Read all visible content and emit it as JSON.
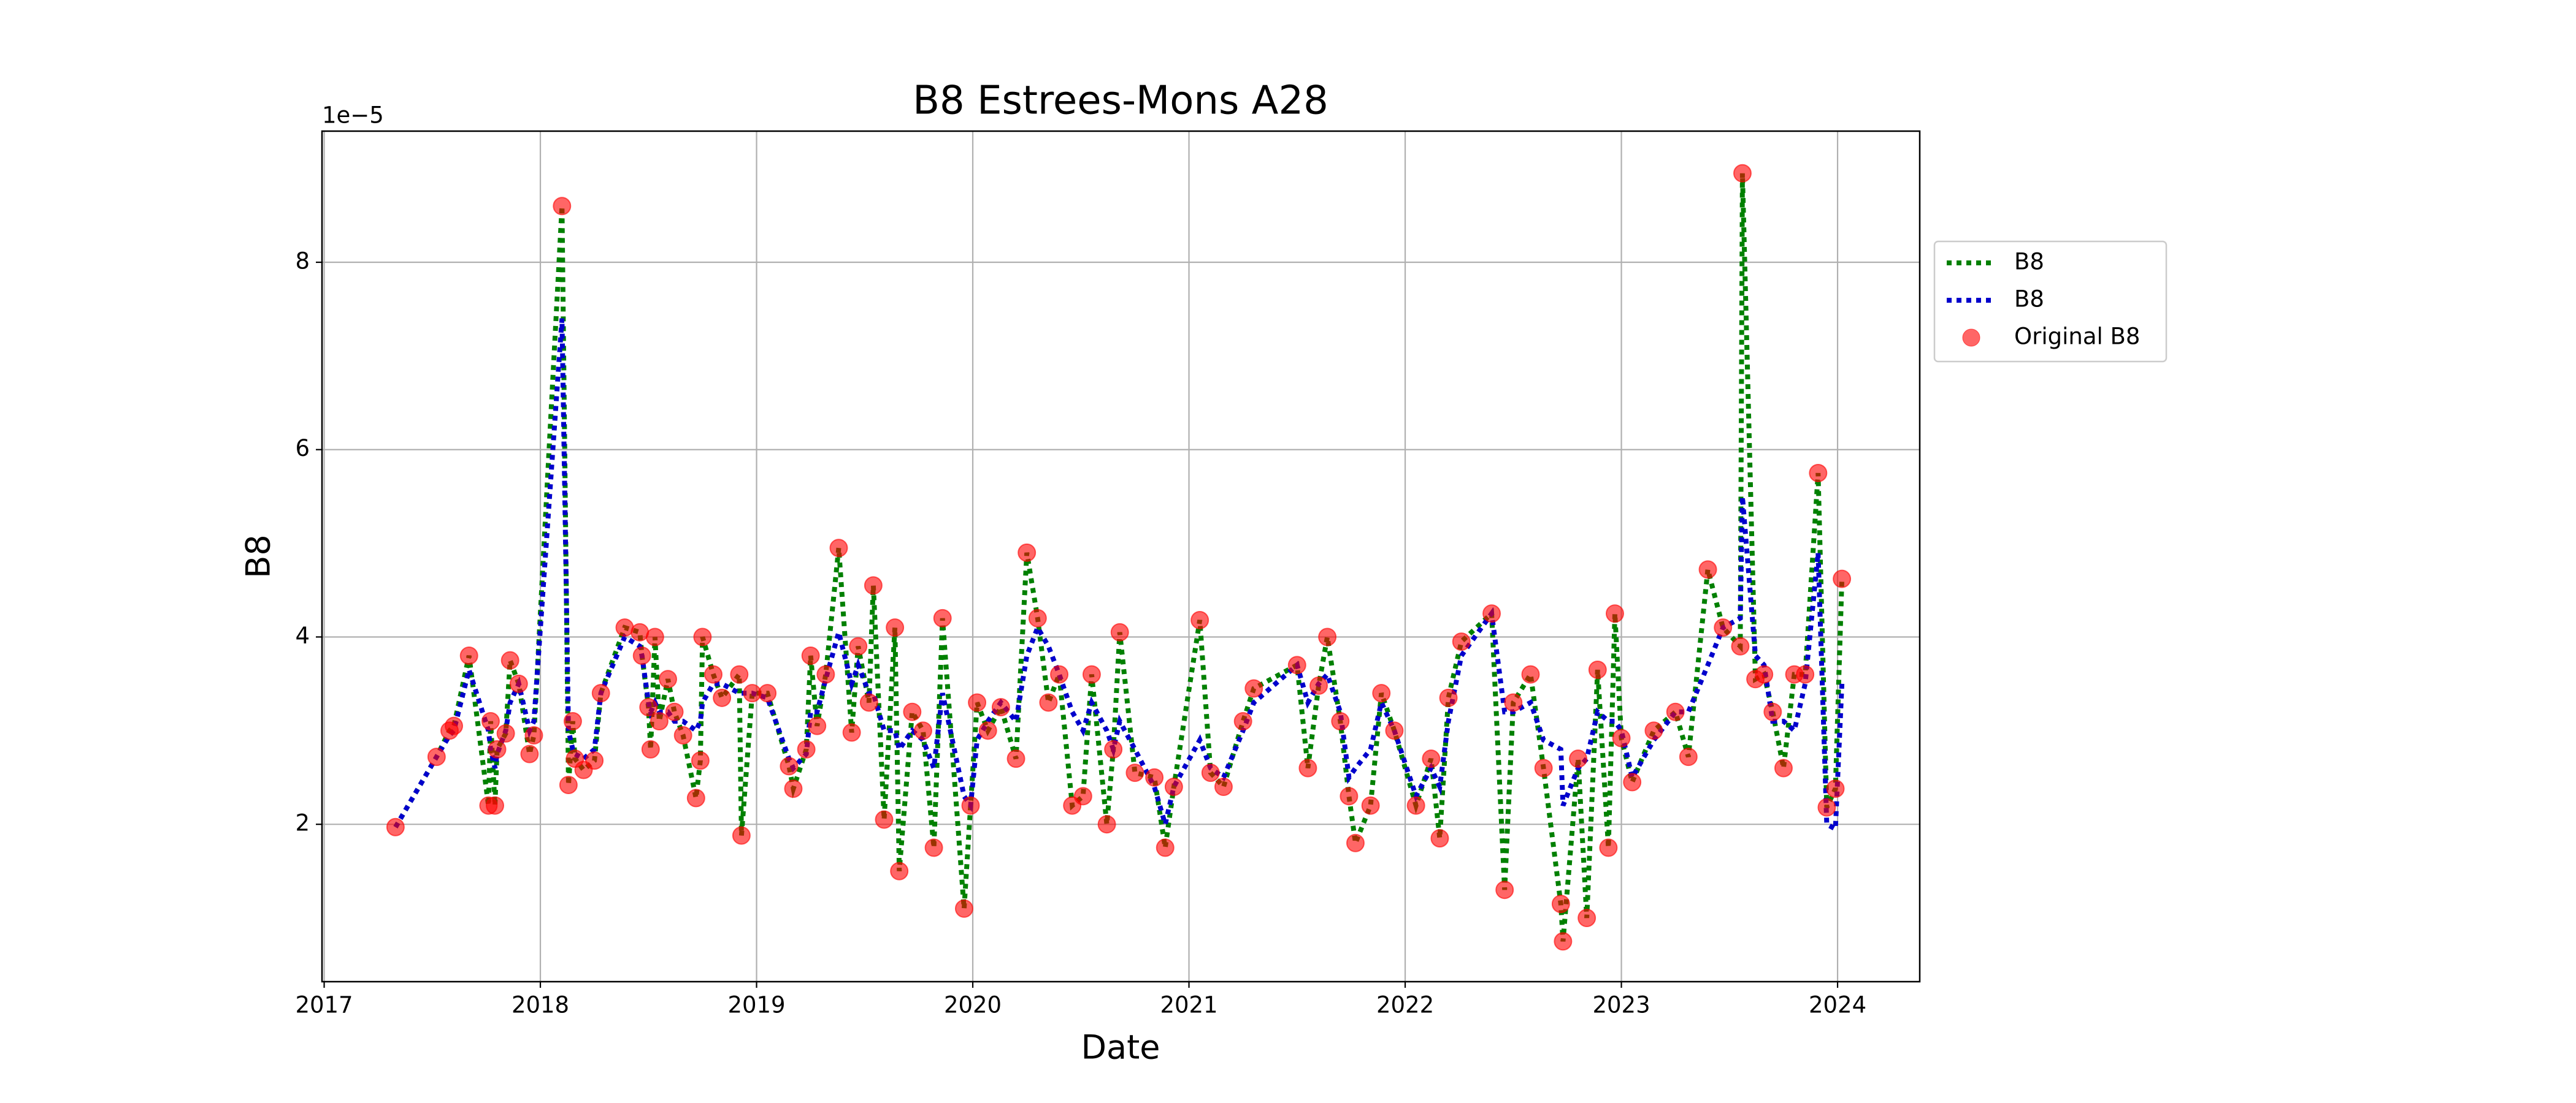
{
  "chart_data": {
    "type": "line",
    "title": "B8 Estrees-Mons A28",
    "x_label": "Date",
    "y_label": "B8",
    "y_offset_label": "1e−5",
    "x": [
      2017.33,
      2017.52,
      2017.58,
      2017.6,
      2017.67,
      2017.76,
      2017.77,
      2017.79,
      2017.8,
      2017.84,
      2017.86,
      2017.9,
      2017.95,
      2017.97,
      2018.1,
      2018.13,
      2018.15,
      2018.16,
      2018.2,
      2018.25,
      2018.28,
      2018.39,
      2018.46,
      2018.47,
      2018.5,
      2018.51,
      2018.53,
      2018.55,
      2018.59,
      2018.62,
      2018.66,
      2018.72,
      2018.74,
      2018.75,
      2018.8,
      2018.84,
      2018.92,
      2018.93,
      2018.98,
      2019.05,
      2019.15,
      2019.17,
      2019.23,
      2019.25,
      2019.28,
      2019.32,
      2019.38,
      2019.44,
      2019.47,
      2019.52,
      2019.54,
      2019.59,
      2019.64,
      2019.66,
      2019.72,
      2019.77,
      2019.82,
      2019.86,
      2019.96,
      2019.99,
      2020.02,
      2020.07,
      2020.13,
      2020.2,
      2020.25,
      2020.3,
      2020.35,
      2020.4,
      2020.46,
      2020.51,
      2020.55,
      2020.62,
      2020.65,
      2020.68,
      2020.75,
      2020.84,
      2020.89,
      2020.93,
      2021.05,
      2021.1,
      2021.16,
      2021.25,
      2021.3,
      2021.5,
      2021.55,
      2021.6,
      2021.64,
      2021.7,
      2021.74,
      2021.77,
      2021.84,
      2021.89,
      2021.95,
      2022.05,
      2022.12,
      2022.16,
      2022.2,
      2022.26,
      2022.4,
      2022.46,
      2022.5,
      2022.58,
      2022.64,
      2022.72,
      2022.73,
      2022.8,
      2022.84,
      2022.89,
      2022.94,
      2022.97,
      2023.0,
      2023.05,
      2023.15,
      2023.25,
      2023.31,
      2023.4,
      2023.47,
      2023.55,
      2023.56,
      2023.62,
      2023.66,
      2023.7,
      2023.75,
      2023.8,
      2023.85,
      2023.91,
      2023.95,
      2023.99,
      2024.02
    ],
    "series": [
      {
        "name": "B8",
        "color": "#008000",
        "kind": "line",
        "values": [
          1.97,
          2.72,
          3.0,
          3.05,
          3.8,
          2.2,
          3.1,
          2.2,
          2.8,
          2.97,
          3.75,
          3.5,
          2.75,
          2.95,
          8.6,
          2.42,
          3.1,
          2.7,
          2.58,
          2.68,
          3.4,
          4.1,
          4.05,
          3.8,
          3.25,
          2.8,
          4.0,
          3.1,
          3.55,
          3.2,
          2.95,
          2.28,
          2.68,
          4.0,
          3.6,
          3.35,
          3.6,
          1.88,
          3.4,
          3.4,
          2.62,
          2.38,
          2.8,
          3.8,
          3.05,
          3.6,
          4.95,
          2.98,
          3.9,
          3.3,
          4.55,
          2.05,
          4.1,
          1.5,
          3.2,
          3.0,
          1.75,
          4.2,
          1.1,
          2.2,
          3.3,
          3.0,
          3.25,
          2.7,
          4.9,
          4.2,
          3.3,
          3.6,
          2.2,
          2.3,
          3.6,
          2.0,
          2.8,
          4.05,
          2.55,
          2.5,
          1.75,
          2.4,
          4.18,
          2.55,
          2.4,
          3.1,
          3.45,
          3.7,
          2.6,
          3.48,
          4.0,
          3.1,
          2.3,
          1.8,
          2.2,
          3.4,
          3.0,
          2.2,
          2.7,
          1.85,
          3.35,
          3.95,
          4.25,
          1.3,
          3.3,
          3.6,
          2.6,
          1.15,
          0.75,
          2.7,
          1.0,
          3.65,
          1.75,
          4.25,
          2.92,
          2.45,
          3.0,
          3.2,
          2.72,
          4.72,
          4.1,
          3.9,
          8.95,
          3.55,
          3.6,
          3.2,
          2.6,
          3.6,
          3.6,
          5.75,
          2.18,
          2.38,
          4.62
        ]
      },
      {
        "name": "B8",
        "color": "#0000cc",
        "kind": "line",
        "values": [
          1.97,
          2.72,
          2.95,
          3.0,
          3.65,
          3.0,
          2.8,
          2.6,
          2.75,
          3.0,
          3.3,
          3.5,
          3.0,
          3.1,
          7.4,
          3.0,
          2.8,
          2.75,
          2.7,
          2.8,
          3.4,
          4.0,
          3.9,
          3.8,
          3.3,
          3.2,
          3.3,
          3.2,
          3.2,
          3.1,
          3.1,
          3.0,
          3.1,
          3.3,
          3.5,
          3.5,
          3.4,
          3.4,
          3.4,
          3.35,
          2.7,
          2.6,
          2.75,
          3.2,
          3.2,
          3.55,
          4.05,
          3.5,
          3.7,
          3.4,
          3.4,
          3.0,
          3.0,
          2.8,
          3.0,
          2.9,
          2.6,
          3.4,
          2.3,
          2.2,
          2.9,
          3.1,
          3.3,
          3.1,
          3.8,
          4.1,
          3.9,
          3.6,
          3.2,
          3.0,
          3.3,
          3.0,
          2.8,
          3.1,
          2.8,
          2.4,
          2.0,
          2.4,
          2.9,
          2.6,
          2.5,
          3.0,
          3.3,
          3.7,
          3.3,
          3.5,
          3.6,
          3.2,
          2.5,
          2.6,
          2.8,
          3.3,
          3.0,
          2.3,
          2.6,
          2.4,
          3.1,
          3.8,
          4.25,
          3.2,
          3.2,
          3.3,
          2.9,
          2.8,
          2.2,
          2.6,
          2.7,
          3.2,
          3.1,
          3.1,
          3.0,
          2.5,
          2.9,
          3.2,
          3.2,
          3.7,
          4.1,
          4.2,
          5.5,
          3.8,
          3.7,
          3.1,
          3.1,
          3.0,
          3.5,
          4.9,
          2.0,
          1.95,
          3.5
        ]
      },
      {
        "name": "Original B8",
        "color": "#ff0000",
        "kind": "scatter",
        "values": [
          1.97,
          2.72,
          3.0,
          3.05,
          3.8,
          2.2,
          3.1,
          2.2,
          2.8,
          2.97,
          3.75,
          3.5,
          2.75,
          2.95,
          8.6,
          2.42,
          3.1,
          2.7,
          2.58,
          2.68,
          3.4,
          4.1,
          4.05,
          3.8,
          3.25,
          2.8,
          4.0,
          3.1,
          3.55,
          3.2,
          2.95,
          2.28,
          2.68,
          4.0,
          3.6,
          3.35,
          3.6,
          1.88,
          3.4,
          3.4,
          2.62,
          2.38,
          2.8,
          3.8,
          3.05,
          3.6,
          4.95,
          2.98,
          3.9,
          3.3,
          4.55,
          2.05,
          4.1,
          1.5,
          3.2,
          3.0,
          1.75,
          4.2,
          1.1,
          2.2,
          3.3,
          3.0,
          3.25,
          2.7,
          4.9,
          4.2,
          3.3,
          3.6,
          2.2,
          2.3,
          3.6,
          2.0,
          2.8,
          4.05,
          2.55,
          2.5,
          1.75,
          2.4,
          4.18,
          2.55,
          2.4,
          3.1,
          3.45,
          3.7,
          2.6,
          3.48,
          4.0,
          3.1,
          2.3,
          1.8,
          2.2,
          3.4,
          3.0,
          2.2,
          2.7,
          1.85,
          3.35,
          3.95,
          4.25,
          1.3,
          3.3,
          3.6,
          2.6,
          1.15,
          0.75,
          2.7,
          1.0,
          3.65,
          1.75,
          4.25,
          2.92,
          2.45,
          3.0,
          3.2,
          2.72,
          4.72,
          4.1,
          3.9,
          8.95,
          3.55,
          3.6,
          3.2,
          2.6,
          3.6,
          3.6,
          5.75,
          2.18,
          2.38,
          4.62
        ]
      }
    ],
    "xlim": [
      2016.99,
      2024.38
    ],
    "xticks": [
      2017,
      2018,
      2019,
      2020,
      2021,
      2022,
      2023,
      2024
    ],
    "ylim": [
      0.32,
      9.4
    ],
    "yticks": [
      2,
      4,
      6,
      8
    ],
    "grid": true,
    "legend": "outside upper right"
  }
}
